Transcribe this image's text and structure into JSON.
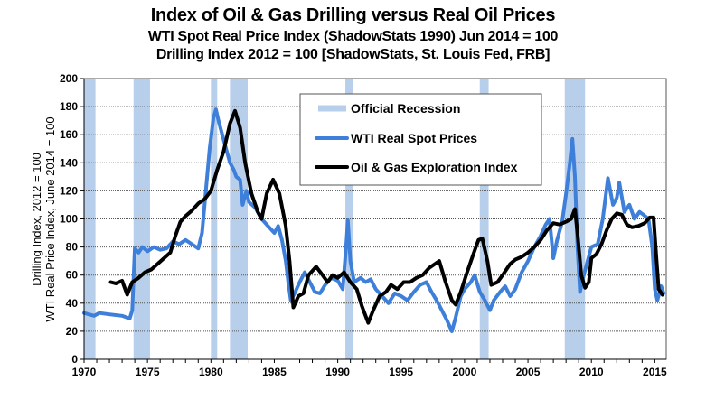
{
  "titles": {
    "main": "Index of Oil & Gas Drilling versus Real Oil Prices",
    "sub1": "WTI Spot Real Price Index (ShadowStats 1990) Jun 2014 = 100",
    "sub2": "Drilling  Index 2012 = 100 [ShadowStats, St. Louis Fed, FRB]"
  },
  "chart_data": {
    "type": "line",
    "title": "Index of Oil & Gas Drilling versus Real Oil Prices",
    "subtitle": [
      "WTI Spot Real Price Index (ShadowStats 1990) Jun 2014 = 100",
      "Drilling  Index 2012 = 100 [ShadowStats, St. Louis Fed, FRB]"
    ],
    "xlabel": "",
    "ylabel": [
      "Drilling Index,  2012 = 100",
      "WTI  Real Price Index, June 2014 = 100"
    ],
    "xlim": [
      1970,
      2015.9
    ],
    "ylim": [
      0,
      200
    ],
    "xticks": [
      1970,
      1975,
      1980,
      1985,
      1990,
      1995,
      2000,
      2005,
      2010,
      2015
    ],
    "yticks": [
      0,
      20,
      40,
      60,
      80,
      100,
      120,
      140,
      160,
      180,
      200
    ],
    "grid": true,
    "legend_position": "top-center",
    "colors": {
      "recession": "#b8cfec",
      "wti": "#3d7fd9",
      "drilling": "#000000"
    },
    "recessions": [
      [
        1970.0,
        1970.9
      ],
      [
        1973.9,
        1975.2
      ],
      [
        1980.0,
        1980.5
      ],
      [
        1981.5,
        1982.9
      ],
      [
        1990.6,
        1991.2
      ],
      [
        2001.2,
        2001.9
      ],
      [
        2007.9,
        2009.5
      ]
    ],
    "series": [
      {
        "name": "WTI Real Spot Prices",
        "key": "wti",
        "points": [
          [
            1970.0,
            33
          ],
          [
            1970.8,
            31
          ],
          [
            1971.2,
            33
          ],
          [
            1972.0,
            32
          ],
          [
            1973.0,
            31
          ],
          [
            1973.6,
            29
          ],
          [
            1973.8,
            35
          ],
          [
            1974.0,
            79
          ],
          [
            1974.3,
            76
          ],
          [
            1974.6,
            80
          ],
          [
            1975.0,
            77
          ],
          [
            1975.5,
            80
          ],
          [
            1976.0,
            78
          ],
          [
            1976.5,
            79
          ],
          [
            1977.0,
            84
          ],
          [
            1977.5,
            82
          ],
          [
            1978.0,
            85
          ],
          [
            1978.5,
            82
          ],
          [
            1979.0,
            79
          ],
          [
            1979.3,
            90
          ],
          [
            1979.6,
            120
          ],
          [
            1979.9,
            150
          ],
          [
            1980.2,
            172
          ],
          [
            1980.4,
            178
          ],
          [
            1980.6,
            170
          ],
          [
            1980.9,
            160
          ],
          [
            1981.2,
            150
          ],
          [
            1981.5,
            140
          ],
          [
            1981.8,
            135
          ],
          [
            1982.0,
            130
          ],
          [
            1982.3,
            128
          ],
          [
            1982.5,
            110
          ],
          [
            1982.8,
            120
          ],
          [
            1983.0,
            112
          ],
          [
            1983.5,
            108
          ],
          [
            1984.0,
            100
          ],
          [
            1984.5,
            95
          ],
          [
            1985.0,
            90
          ],
          [
            1985.3,
            95
          ],
          [
            1985.6,
            85
          ],
          [
            1985.9,
            70
          ],
          [
            1986.1,
            55
          ],
          [
            1986.3,
            42
          ],
          [
            1986.6,
            47
          ],
          [
            1987.0,
            55
          ],
          [
            1987.4,
            62
          ],
          [
            1987.8,
            55
          ],
          [
            1988.2,
            48
          ],
          [
            1988.6,
            47
          ],
          [
            1989.0,
            53
          ],
          [
            1989.5,
            58
          ],
          [
            1990.0,
            56
          ],
          [
            1990.4,
            50
          ],
          [
            1990.7,
            85
          ],
          [
            1990.8,
            99
          ],
          [
            1991.0,
            70
          ],
          [
            1991.3,
            55
          ],
          [
            1991.8,
            58
          ],
          [
            1992.2,
            55
          ],
          [
            1992.6,
            57
          ],
          [
            1993.0,
            50
          ],
          [
            1993.5,
            45
          ],
          [
            1994.0,
            40
          ],
          [
            1994.5,
            47
          ],
          [
            1995.0,
            45
          ],
          [
            1995.5,
            42
          ],
          [
            1996.0,
            48
          ],
          [
            1996.5,
            53
          ],
          [
            1997.0,
            55
          ],
          [
            1997.4,
            48
          ],
          [
            1997.8,
            42
          ],
          [
            1998.2,
            35
          ],
          [
            1998.6,
            28
          ],
          [
            1999.0,
            20
          ],
          [
            1999.3,
            30
          ],
          [
            1999.7,
            45
          ],
          [
            2000.0,
            50
          ],
          [
            2000.5,
            55
          ],
          [
            2000.8,
            60
          ],
          [
            2001.2,
            48
          ],
          [
            2001.6,
            42
          ],
          [
            2002.0,
            35
          ],
          [
            2002.3,
            42
          ],
          [
            2002.8,
            48
          ],
          [
            2003.2,
            52
          ],
          [
            2003.6,
            45
          ],
          [
            2004.0,
            50
          ],
          [
            2004.5,
            62
          ],
          [
            2005.0,
            70
          ],
          [
            2005.5,
            80
          ],
          [
            2006.0,
            88
          ],
          [
            2006.4,
            96
          ],
          [
            2006.7,
            100
          ],
          [
            2007.0,
            72
          ],
          [
            2007.3,
            85
          ],
          [
            2007.7,
            98
          ],
          [
            2008.0,
            118
          ],
          [
            2008.3,
            140
          ],
          [
            2008.5,
            157
          ],
          [
            2008.7,
            130
          ],
          [
            2008.9,
            80
          ],
          [
            2009.1,
            48
          ],
          [
            2009.4,
            60
          ],
          [
            2009.7,
            70
          ],
          [
            2010.0,
            80
          ],
          [
            2010.5,
            82
          ],
          [
            2010.9,
            100
          ],
          [
            2011.3,
            129
          ],
          [
            2011.7,
            110
          ],
          [
            2012.0,
            115
          ],
          [
            2012.2,
            126
          ],
          [
            2012.6,
            105
          ],
          [
            2013.0,
            110
          ],
          [
            2013.4,
            100
          ],
          [
            2013.8,
            105
          ],
          [
            2014.1,
            103
          ],
          [
            2014.5,
            100
          ],
          [
            2014.8,
            80
          ],
          [
            2015.0,
            50
          ],
          [
            2015.2,
            42
          ],
          [
            2015.5,
            52
          ],
          [
            2015.7,
            47
          ]
        ]
      },
      {
        "name": "Oil & Gas Exploration Index",
        "key": "drilling",
        "points": [
          [
            1972.1,
            55
          ],
          [
            1972.5,
            54
          ],
          [
            1973.0,
            56
          ],
          [
            1973.4,
            46
          ],
          [
            1973.8,
            55
          ],
          [
            1974.3,
            58
          ],
          [
            1974.8,
            62
          ],
          [
            1975.3,
            64
          ],
          [
            1975.8,
            68
          ],
          [
            1976.3,
            72
          ],
          [
            1976.8,
            76
          ],
          [
            1977.2,
            88
          ],
          [
            1977.6,
            98
          ],
          [
            1978.0,
            102
          ],
          [
            1978.5,
            106
          ],
          [
            1979.0,
            111
          ],
          [
            1979.5,
            114
          ],
          [
            1980.0,
            120
          ],
          [
            1980.5,
            135
          ],
          [
            1981.0,
            148
          ],
          [
            1981.5,
            168
          ],
          [
            1981.9,
            177
          ],
          [
            1982.3,
            165
          ],
          [
            1982.7,
            140
          ],
          [
            1983.2,
            118
          ],
          [
            1983.7,
            105
          ],
          [
            1984.0,
            100
          ],
          [
            1984.4,
            118
          ],
          [
            1984.9,
            128
          ],
          [
            1985.4,
            118
          ],
          [
            1985.9,
            95
          ],
          [
            1986.2,
            70
          ],
          [
            1986.5,
            37
          ],
          [
            1986.9,
            45
          ],
          [
            1987.3,
            47
          ],
          [
            1987.7,
            60
          ],
          [
            1988.3,
            66
          ],
          [
            1988.8,
            60
          ],
          [
            1989.2,
            55
          ],
          [
            1989.6,
            60
          ],
          [
            1990.0,
            58
          ],
          [
            1990.5,
            62
          ],
          [
            1991.0,
            55
          ],
          [
            1991.5,
            50
          ],
          [
            1991.9,
            38
          ],
          [
            1992.4,
            26
          ],
          [
            1992.8,
            35
          ],
          [
            1993.3,
            45
          ],
          [
            1993.8,
            48
          ],
          [
            1994.2,
            53
          ],
          [
            1994.7,
            50
          ],
          [
            1995.2,
            55
          ],
          [
            1995.7,
            55
          ],
          [
            1996.2,
            58
          ],
          [
            1996.7,
            60
          ],
          [
            1997.2,
            65
          ],
          [
            1998.0,
            70
          ],
          [
            1998.5,
            55
          ],
          [
            1999.0,
            42
          ],
          [
            1999.3,
            39
          ],
          [
            1999.7,
            48
          ],
          [
            2000.2,
            62
          ],
          [
            2000.7,
            75
          ],
          [
            2001.1,
            85
          ],
          [
            2001.4,
            86
          ],
          [
            2001.8,
            70
          ],
          [
            2002.1,
            53
          ],
          [
            2002.6,
            55
          ],
          [
            2003.0,
            60
          ],
          [
            2003.6,
            68
          ],
          [
            2004.0,
            71
          ],
          [
            2004.5,
            73
          ],
          [
            2005.0,
            76
          ],
          [
            2005.5,
            80
          ],
          [
            2006.0,
            85
          ],
          [
            2006.5,
            92
          ],
          [
            2007.0,
            97
          ],
          [
            2007.5,
            96
          ],
          [
            2008.0,
            98
          ],
          [
            2008.4,
            100
          ],
          [
            2008.7,
            107
          ],
          [
            2008.9,
            90
          ],
          [
            2009.2,
            60
          ],
          [
            2009.5,
            51
          ],
          [
            2009.8,
            55
          ],
          [
            2010.0,
            72
          ],
          [
            2010.4,
            75
          ],
          [
            2010.8,
            82
          ],
          [
            2011.2,
            92
          ],
          [
            2011.6,
            100
          ],
          [
            2012.0,
            104
          ],
          [
            2012.4,
            103
          ],
          [
            2012.8,
            96
          ],
          [
            2013.2,
            94
          ],
          [
            2013.7,
            95
          ],
          [
            2014.2,
            97
          ],
          [
            2014.6,
            101
          ],
          [
            2014.9,
            101
          ],
          [
            2015.1,
            75
          ],
          [
            2015.3,
            50
          ],
          [
            2015.6,
            46
          ]
        ]
      }
    ],
    "legend": [
      "Official Recession",
      "WTI Real Spot Prices",
      "Oil & Gas Exploration Index"
    ]
  }
}
